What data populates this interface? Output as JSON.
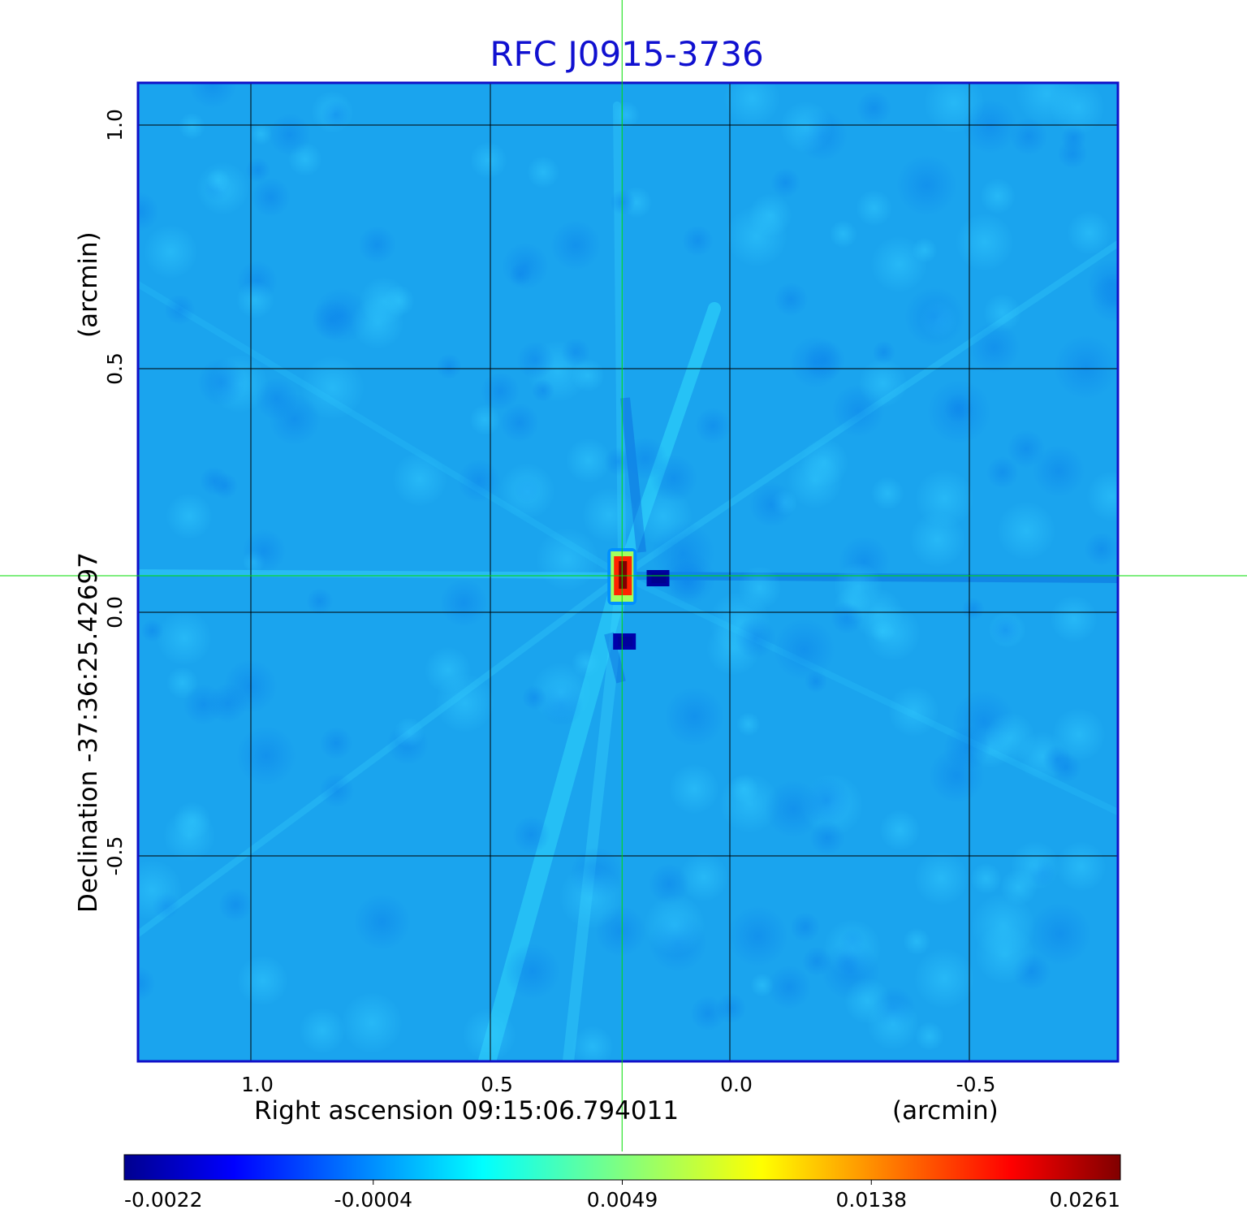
{
  "chart_data": {
    "type": "heatmap",
    "title": "RFC J0915-3736",
    "xlabel": "Right ascension  09:15:06.794011",
    "xunit": "(arcmin)",
    "ylabel": "Declination  -37:36:25.42697",
    "yunit": "(arcmin)",
    "x_ticks": [
      1.0,
      0.5,
      0.0,
      -0.5
    ],
    "x_tick_labels": [
      "1.0",
      "0.5",
      "0.0",
      "-0.5"
    ],
    "y_ticks": [
      1.0,
      0.5,
      0.0,
      -0.5
    ],
    "y_tick_labels": [
      "1.0",
      "0.5",
      "0.0",
      "-0.5"
    ],
    "xlim": [
      1.24,
      -0.81
    ],
    "ylim": [
      -0.92,
      1.09
    ],
    "grid": true,
    "crosshair": {
      "x": 0.225,
      "y": 0.075,
      "color": "#00dd00"
    },
    "colorscale": "jet",
    "colorbar_ticks": [
      "-0.0022",
      "-0.0004",
      "0.0049",
      "0.0138",
      "0.0261"
    ],
    "colorbar_range": [
      -0.0022,
      0.0261
    ],
    "background_level": -0.0008,
    "features": [
      {
        "kind": "peak",
        "x": 0.225,
        "y": 0.075,
        "value": 0.0261
      },
      {
        "kind": "negative",
        "x": 0.15,
        "y": 0.07,
        "value": -0.0022
      },
      {
        "kind": "negative",
        "x": 0.22,
        "y": -0.06,
        "value": -0.0018
      }
    ],
    "colors": {
      "title": "#1010d0",
      "frame": "#1010c8",
      "grid": "#000000"
    }
  }
}
